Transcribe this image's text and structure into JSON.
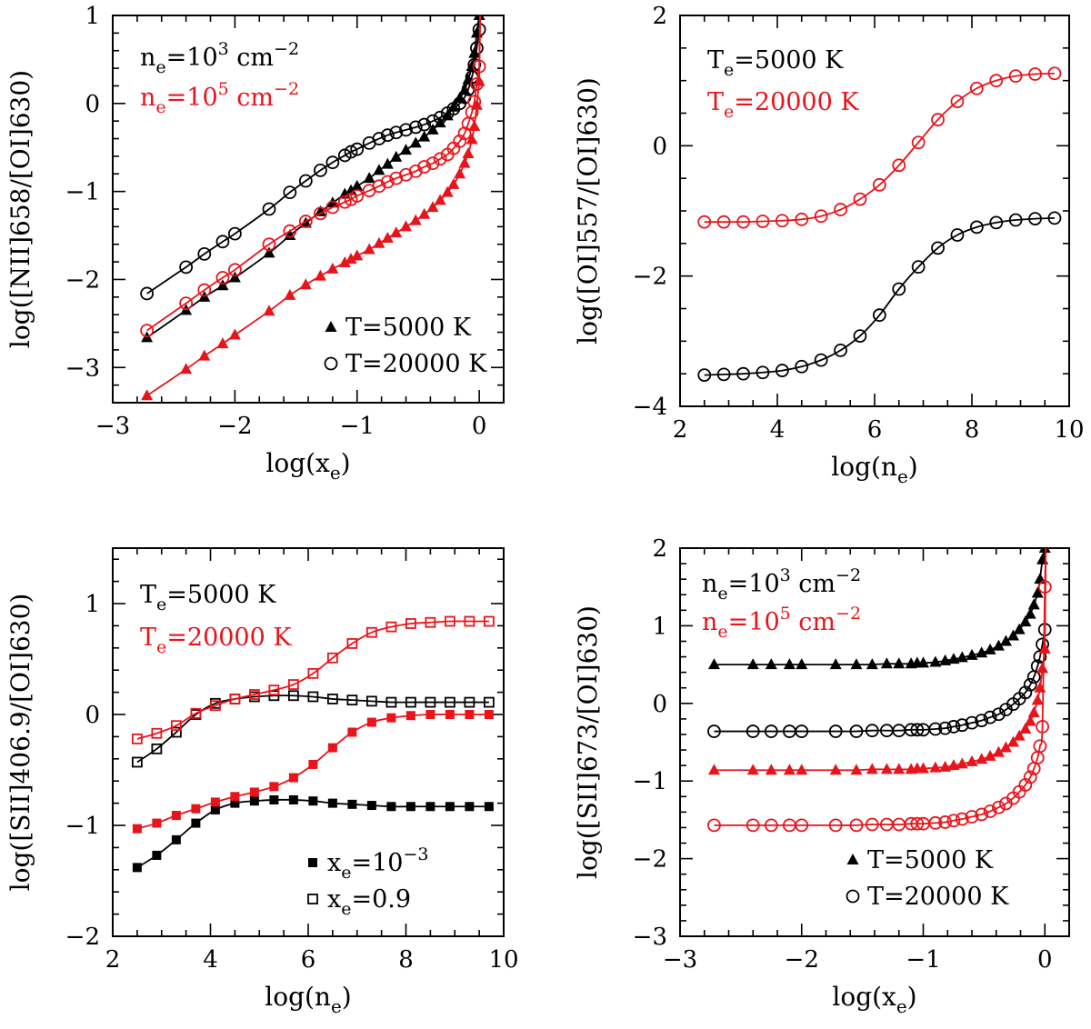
{
  "figure": {
    "title": ""
  },
  "colors": {
    "black": "#000000",
    "red": "#e8141b"
  },
  "chart_data": [
    {
      "type": "line",
      "panel": "top-left",
      "xlabel": {
        "base": "log(x",
        "sub": "e",
        "tail": ")"
      },
      "ylabel": "log([NII]658/[OI]630)",
      "xlim": [
        -3,
        0.2
      ],
      "ylim": [
        -3.4,
        1
      ],
      "xticks": [
        -3,
        -2,
        -1,
        0
      ],
      "xtick_labels": [
        "−3",
        "−2",
        "−1",
        "0"
      ],
      "yticks": [
        -3,
        -2,
        -1,
        0,
        1
      ],
      "ytick_labels": [
        "−3",
        "−2",
        "−1",
        "0",
        "1"
      ],
      "annotations": [
        {
          "color": "black",
          "base": "n",
          "sub": "e",
          "mid": "=10",
          "sup": "3",
          "tail": " cm",
          "sup2": "−2"
        },
        {
          "color": "red",
          "base": "n",
          "sub": "e",
          "mid": "=10",
          "sup": "5",
          "tail": " cm",
          "sup2": "−2"
        }
      ],
      "legend": {
        "position": "bottom-right",
        "entries": [
          {
            "marker": "triangle",
            "label": "T=5000 K"
          },
          {
            "marker": "circle",
            "label": "T=20000 K"
          }
        ]
      },
      "x": [
        -2.72,
        -2.4,
        -2.25,
        -2.1,
        -2.0,
        -1.72,
        -1.55,
        -1.42,
        -1.3,
        -1.2,
        -1.1,
        -1.05,
        -1.0,
        -0.9,
        -0.82,
        -0.75,
        -0.68,
        -0.6,
        -0.52,
        -0.45,
        -0.38,
        -0.32,
        -0.26,
        -0.21,
        -0.16,
        -0.12,
        -0.09,
        -0.06,
        -0.04,
        -0.02,
        0.0
      ],
      "series": [
        {
          "name": "T=5000 K, ne=1e3",
          "color": "black",
          "marker": "triangle",
          "values": [
            -2.66,
            -2.35,
            -2.2,
            -2.07,
            -1.98,
            -1.7,
            -1.5,
            -1.36,
            -1.23,
            -1.13,
            -1.03,
            -0.99,
            -0.94,
            -0.85,
            -0.76,
            -0.69,
            -0.61,
            -0.53,
            -0.45,
            -0.38,
            -0.3,
            -0.22,
            -0.14,
            -0.04,
            0.06,
            0.15,
            0.27,
            0.42,
            0.57,
            0.8,
            1.0
          ]
        },
        {
          "name": "T=20000 K, ne=1e3",
          "color": "black",
          "marker": "circle",
          "values": [
            -2.16,
            -1.86,
            -1.71,
            -1.57,
            -1.48,
            -1.2,
            -1.01,
            -0.88,
            -0.76,
            -0.67,
            -0.59,
            -0.55,
            -0.52,
            -0.45,
            -0.4,
            -0.36,
            -0.33,
            -0.3,
            -0.27,
            -0.24,
            -0.2,
            -0.16,
            -0.11,
            -0.06,
            0.0,
            0.07,
            0.16,
            0.3,
            0.44,
            0.63,
            0.84
          ]
        },
        {
          "name": "T=5000 K, ne=1e5",
          "color": "red",
          "marker": "triangle",
          "values": [
            -3.32,
            -3.02,
            -2.87,
            -2.73,
            -2.63,
            -2.36,
            -2.18,
            -2.06,
            -1.96,
            -1.88,
            -1.81,
            -1.77,
            -1.73,
            -1.66,
            -1.59,
            -1.53,
            -1.47,
            -1.4,
            -1.33,
            -1.26,
            -1.18,
            -1.1,
            -1.01,
            -0.92,
            -0.8,
            -0.68,
            -0.57,
            -0.41,
            -0.26,
            -0.02,
            0.25
          ]
        },
        {
          "name": "T=20000 K, ne=1e5",
          "color": "red",
          "marker": "circle",
          "values": [
            -2.58,
            -2.27,
            -2.12,
            -1.98,
            -1.89,
            -1.6,
            -1.45,
            -1.34,
            -1.25,
            -1.18,
            -1.12,
            -1.09,
            -1.05,
            -0.99,
            -0.94,
            -0.89,
            -0.85,
            -0.81,
            -0.77,
            -0.72,
            -0.68,
            -0.63,
            -0.58,
            -0.51,
            -0.43,
            -0.34,
            -0.23,
            -0.1,
            0.02,
            0.22,
            0.42
          ]
        }
      ]
    },
    {
      "type": "line",
      "panel": "top-right",
      "xlabel": {
        "base": "log(n",
        "sub": "e",
        "tail": ")"
      },
      "ylabel": "log([OI]557/[OI]630)",
      "xlim": [
        2,
        10
      ],
      "ylim": [
        -4,
        2
      ],
      "xticks": [
        2,
        4,
        6,
        8,
        10
      ],
      "xtick_labels": [
        "2",
        "4",
        "6",
        "8",
        "10"
      ],
      "yticks": [
        -4,
        -2,
        0,
        2
      ],
      "ytick_labels": [
        "−4",
        "−2",
        "0",
        "2"
      ],
      "annotations": [
        {
          "color": "black",
          "base": "T",
          "sub": "e",
          "mid": "=5000 K"
        },
        {
          "color": "red",
          "base": "T",
          "sub": "e",
          "mid": "=20000 K"
        }
      ],
      "x": [
        2.5,
        2.9,
        3.3,
        3.7,
        4.1,
        4.5,
        4.9,
        5.3,
        5.7,
        6.1,
        6.5,
        6.9,
        7.3,
        7.7,
        8.1,
        8.5,
        8.9,
        9.3,
        9.7
      ],
      "series": [
        {
          "name": "Te=5000 K",
          "color": "black",
          "marker": "circle",
          "values": [
            -3.52,
            -3.51,
            -3.5,
            -3.48,
            -3.45,
            -3.39,
            -3.29,
            -3.14,
            -2.92,
            -2.6,
            -2.2,
            -1.86,
            -1.57,
            -1.37,
            -1.25,
            -1.18,
            -1.14,
            -1.12,
            -1.11
          ]
        },
        {
          "name": "Te=20000 K",
          "color": "red",
          "marker": "circle",
          "values": [
            -1.17,
            -1.17,
            -1.17,
            -1.16,
            -1.15,
            -1.13,
            -1.08,
            -0.98,
            -0.82,
            -0.6,
            -0.3,
            0.05,
            0.4,
            0.68,
            0.88,
            1.0,
            1.07,
            1.1,
            1.11
          ]
        }
      ]
    },
    {
      "type": "line",
      "panel": "bottom-left",
      "xlabel": {
        "base": "log(n",
        "sub": "e",
        "tail": ")"
      },
      "ylabel": "log([SII]406.9/[OI]630)",
      "xlim": [
        2,
        10
      ],
      "ylim": [
        -2,
        1.5
      ],
      "xticks": [
        2,
        4,
        6,
        8,
        10
      ],
      "xtick_labels": [
        "2",
        "4",
        "6",
        "8",
        "10"
      ],
      "yticks": [
        -2,
        -1,
        0,
        1
      ],
      "ytick_labels": [
        "−2",
        "−1",
        "0",
        "1"
      ],
      "annotations": [
        {
          "color": "black",
          "base": "T",
          "sub": "e",
          "mid": "=5000 K"
        },
        {
          "color": "red",
          "base": "T",
          "sub": "e",
          "mid": "=20000 K"
        }
      ],
      "legend": {
        "position": "bottom-right",
        "entries": [
          {
            "marker": "square-filled",
            "base": "x",
            "sub": "e",
            "mid": "=10",
            "sup": "−3"
          },
          {
            "marker": "square-open",
            "base": "x",
            "sub": "e",
            "mid": "=0.9"
          }
        ]
      },
      "x": [
        2.5,
        2.9,
        3.3,
        3.7,
        4.1,
        4.5,
        4.9,
        5.3,
        5.7,
        6.1,
        6.5,
        6.9,
        7.3,
        7.7,
        8.1,
        8.5,
        8.9,
        9.3,
        9.7
      ],
      "series": [
        {
          "name": "Te=5000 K, xe=1e-3",
          "color": "black",
          "marker": "square-filled",
          "values": [
            -1.38,
            -1.27,
            -1.13,
            -0.98,
            -0.86,
            -0.8,
            -0.78,
            -0.77,
            -0.77,
            -0.78,
            -0.8,
            -0.81,
            -0.82,
            -0.83,
            -0.83,
            -0.83,
            -0.83,
            -0.83,
            -0.83
          ]
        },
        {
          "name": "Te=5000 K, xe=0.9",
          "color": "black",
          "marker": "square-open",
          "values": [
            -0.43,
            -0.31,
            -0.16,
            0.0,
            0.1,
            0.14,
            0.16,
            0.17,
            0.17,
            0.16,
            0.14,
            0.13,
            0.12,
            0.11,
            0.11,
            0.11,
            0.11,
            0.11,
            0.11
          ]
        },
        {
          "name": "Te=20000 K, xe=1e-3",
          "color": "red",
          "marker": "square-filled",
          "values": [
            -1.03,
            -0.98,
            -0.91,
            -0.85,
            -0.79,
            -0.74,
            -0.7,
            -0.65,
            -0.57,
            -0.45,
            -0.3,
            -0.16,
            -0.07,
            -0.03,
            -0.01,
            0.0,
            0.0,
            0.0,
            0.0
          ]
        },
        {
          "name": "Te=20000 K, xe=0.9",
          "color": "red",
          "marker": "square-open",
          "values": [
            -0.22,
            -0.17,
            -0.1,
            0.01,
            0.08,
            0.14,
            0.18,
            0.22,
            0.27,
            0.37,
            0.51,
            0.64,
            0.74,
            0.79,
            0.82,
            0.83,
            0.84,
            0.84,
            0.84
          ]
        }
      ]
    },
    {
      "type": "line",
      "panel": "bottom-right",
      "xlabel": {
        "base": "log(x",
        "sub": "e",
        "tail": ")"
      },
      "ylabel": "log([SII]673/[OI]630)",
      "xlim": [
        -3,
        0.2
      ],
      "ylim": [
        -3,
        2
      ],
      "xticks": [
        -3,
        -2,
        -1,
        0
      ],
      "xtick_labels": [
        "−3",
        "−2",
        "−1",
        "0"
      ],
      "yticks": [
        -3,
        -2,
        -1,
        0,
        1,
        2
      ],
      "ytick_labels": [
        "−3",
        "−2",
        "−1",
        "0",
        "1",
        "2"
      ],
      "annotations": [
        {
          "color": "black",
          "base": "n",
          "sub": "e",
          "mid": "=10",
          "sup": "3",
          "tail": " cm",
          "sup2": "−2"
        },
        {
          "color": "red",
          "base": "n",
          "sub": "e",
          "mid": "=10",
          "sup": "5",
          "tail": " cm",
          "sup2": "−2"
        }
      ],
      "legend": {
        "position": "bottom-right",
        "entries": [
          {
            "marker": "triangle",
            "label": "T=5000 K"
          },
          {
            "marker": "circle",
            "label": "T=20000 K"
          }
        ]
      },
      "x": [
        -2.72,
        -2.4,
        -2.25,
        -2.1,
        -2.0,
        -1.72,
        -1.55,
        -1.42,
        -1.3,
        -1.2,
        -1.1,
        -1.05,
        -1.0,
        -0.9,
        -0.82,
        -0.75,
        -0.68,
        -0.6,
        -0.52,
        -0.45,
        -0.38,
        -0.32,
        -0.26,
        -0.21,
        -0.16,
        -0.12,
        -0.09,
        -0.06,
        -0.04,
        -0.02,
        0.0
      ],
      "series": [
        {
          "name": "T=5000 K, ne=1e3",
          "color": "black",
          "marker": "triangle",
          "values": [
            0.5,
            0.5,
            0.5,
            0.5,
            0.5,
            0.5,
            0.5,
            0.5,
            0.51,
            0.51,
            0.51,
            0.52,
            0.52,
            0.53,
            0.55,
            0.57,
            0.59,
            0.62,
            0.65,
            0.69,
            0.74,
            0.8,
            0.87,
            0.95,
            1.05,
            1.15,
            1.27,
            1.42,
            1.6,
            1.85,
            2.0
          ]
        },
        {
          "name": "T=20000 K, ne=1e3",
          "color": "black",
          "marker": "circle",
          "values": [
            -0.36,
            -0.36,
            -0.36,
            -0.36,
            -0.36,
            -0.36,
            -0.36,
            -0.35,
            -0.35,
            -0.35,
            -0.34,
            -0.34,
            -0.34,
            -0.33,
            -0.32,
            -0.3,
            -0.28,
            -0.25,
            -0.22,
            -0.18,
            -0.14,
            -0.08,
            -0.01,
            0.06,
            0.14,
            0.24,
            0.34,
            0.48,
            0.6,
            0.76,
            0.95
          ]
        },
        {
          "name": "T=5000 K, ne=1e5",
          "color": "red",
          "marker": "triangle",
          "values": [
            -0.86,
            -0.86,
            -0.86,
            -0.86,
            -0.86,
            -0.86,
            -0.86,
            -0.85,
            -0.85,
            -0.85,
            -0.85,
            -0.84,
            -0.84,
            -0.83,
            -0.82,
            -0.8,
            -0.78,
            -0.75,
            -0.72,
            -0.68,
            -0.63,
            -0.57,
            -0.5,
            -0.42,
            -0.33,
            -0.23,
            -0.12,
            0.04,
            0.2,
            0.45,
            0.7
          ]
        },
        {
          "name": "T=20000 K, ne=1e5",
          "color": "red",
          "marker": "circle",
          "values": [
            -1.57,
            -1.57,
            -1.57,
            -1.57,
            -1.57,
            -1.57,
            -1.57,
            -1.56,
            -1.56,
            -1.56,
            -1.55,
            -1.55,
            -1.55,
            -1.54,
            -1.53,
            -1.51,
            -1.49,
            -1.46,
            -1.43,
            -1.39,
            -1.34,
            -1.29,
            -1.22,
            -1.14,
            -1.05,
            -0.95,
            -0.84,
            -0.7,
            -0.55,
            -0.3,
            1.5
          ]
        }
      ]
    }
  ]
}
